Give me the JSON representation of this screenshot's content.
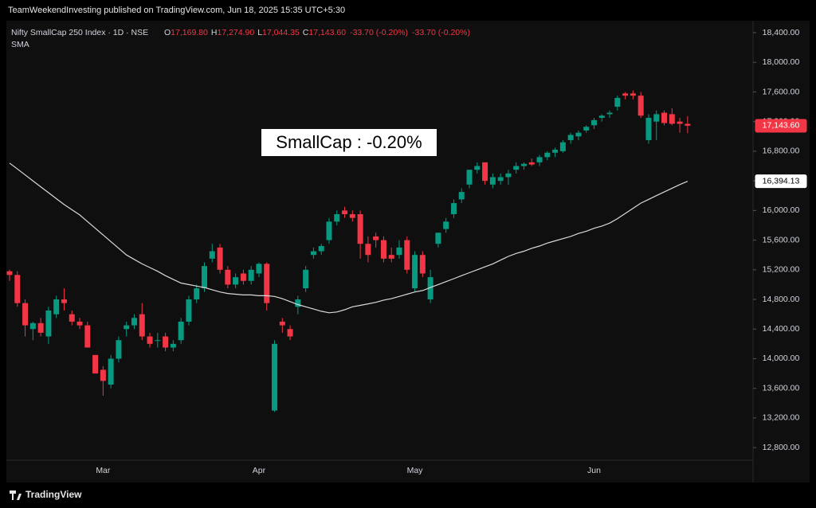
{
  "header": {
    "publisher": "TeamWeekendInvesting published on TradingView.com, Jun 18, 2025 15:35 UTC+5:30"
  },
  "footer": {
    "brand": "TradingView"
  },
  "chart_data": {
    "type": "candlestick",
    "symbol": "Nifty SmallCap 250 Index · 1D · NSE",
    "ohlc": [
      {
        "key": "O",
        "value": "17,169.80"
      },
      {
        "key": "H",
        "value": "17,274.90"
      },
      {
        "key": "L",
        "value": "17,044.35"
      },
      {
        "key": "C",
        "value": "17,143.60"
      }
    ],
    "change": [
      "-33.70 (-0.20%)",
      "-33.70 (-0.20%)"
    ],
    "annotation": "SmallCap : -0.20%",
    "up_color": "#089981",
    "down_color": "#f23645",
    "grid": false,
    "categories": [
      null,
      null,
      null,
      null,
      null,
      null,
      null,
      null,
      null,
      null,
      null,
      null,
      "Mar",
      null,
      null,
      null,
      null,
      null,
      null,
      null,
      null,
      null,
      null,
      null,
      null,
      null,
      null,
      null,
      null,
      null,
      null,
      null,
      "Apr",
      null,
      null,
      null,
      null,
      null,
      null,
      null,
      null,
      null,
      null,
      null,
      null,
      null,
      null,
      null,
      null,
      null,
      null,
      null,
      "May",
      null,
      null,
      null,
      null,
      null,
      null,
      null,
      null,
      null,
      null,
      null,
      null,
      null,
      null,
      null,
      null,
      null,
      null,
      null,
      null,
      null,
      null,
      "Jun",
      null,
      null,
      null,
      null,
      null,
      null,
      null,
      null,
      null,
      null,
      null,
      null
    ],
    "open": [
      15180,
      15130,
      14750,
      14400,
      14480,
      14300,
      14600,
      14800,
      14600,
      14500,
      14450,
      14050,
      13850,
      13650,
      14000,
      14400,
      14450,
      14600,
      14300,
      14250,
      14300,
      14150,
      14250,
      14500,
      14800,
      14950,
      15350,
      15500,
      15200,
      15000,
      15150,
      15050,
      15150,
      15280,
      13300,
      14500,
      14400,
      14700,
      14950,
      15400,
      15450,
      15600,
      15850,
      16000,
      15950,
      15950,
      15550,
      15650,
      15600,
      15400,
      15400,
      15600,
      14950,
      15400,
      14800,
      15550,
      15750,
      15950,
      16150,
      16350,
      16550,
      16650,
      16350,
      16400,
      16450,
      16550,
      16600,
      16650,
      16650,
      16720,
      16780,
      16800,
      16950,
      17000,
      17080,
      17150,
      17250,
      17300,
      17400,
      17580,
      17580,
      17550,
      16950,
      17200,
      17320,
      17300,
      17200,
      17169.8
    ],
    "high": [
      15200,
      15180,
      14800,
      14500,
      14550,
      14700,
      14850,
      14950,
      14650,
      14550,
      14500,
      14050,
      13900,
      14050,
      14300,
      14500,
      14600,
      14750,
      14350,
      14350,
      14350,
      14250,
      14550,
      14850,
      15000,
      15300,
      15550,
      15550,
      15250,
      15150,
      15200,
      15250,
      15300,
      15300,
      14250,
      14550,
      14450,
      14850,
      15250,
      15500,
      15550,
      15900,
      16000,
      16050,
      16000,
      16000,
      15650,
      15700,
      15650,
      15500,
      15600,
      15650,
      15450,
      15450,
      15200,
      15700,
      15900,
      16150,
      16300,
      16550,
      16650,
      16650,
      16500,
      16500,
      16550,
      16650,
      16650,
      16700,
      16750,
      16800,
      16850,
      16950,
      17050,
      17080,
      17150,
      17250,
      17300,
      17350,
      17550,
      17600,
      17620,
      17600,
      17300,
      17350,
      17350,
      17380,
      17250,
      17274.9
    ],
    "low": [
      15050,
      14700,
      14300,
      14250,
      14300,
      14200,
      14550,
      14650,
      14450,
      14400,
      14200,
      13800,
      13500,
      13600,
      13950,
      14300,
      14400,
      14250,
      14150,
      14150,
      14100,
      14100,
      14200,
      14450,
      14750,
      14900,
      15300,
      15150,
      14950,
      14950,
      15000,
      15000,
      15100,
      14650,
      13280,
      14350,
      14250,
      14600,
      14900,
      15350,
      15400,
      15550,
      15800,
      15900,
      15850,
      15350,
      15300,
      15500,
      15300,
      15300,
      15350,
      15150,
      14900,
      15100,
      14750,
      15500,
      15700,
      15900,
      16100,
      16300,
      16500,
      16350,
      16300,
      16350,
      16350,
      16500,
      16550,
      16600,
      16600,
      16680,
      16720,
      16780,
      16900,
      16950,
      17050,
      17100,
      17200,
      17250,
      17350,
      17500,
      17500,
      17250,
      16900,
      16950,
      17150,
      17150,
      17050,
      17044.35
    ],
    "close": [
      15130,
      14750,
      14450,
      14480,
      14350,
      14650,
      14800,
      14750,
      14500,
      14450,
      14150,
      13800,
      13700,
      14000,
      14250,
      14450,
      14550,
      14300,
      14200,
      14250,
      14150,
      14200,
      14500,
      14800,
      14950,
      15250,
      15450,
      15200,
      15000,
      15100,
      15050,
      15200,
      15280,
      14750,
      14200,
      14450,
      14300,
      14800,
      15200,
      15450,
      15520,
      15850,
      15950,
      15950,
      15900,
      15550,
      15400,
      15600,
      15350,
      15350,
      15500,
      15200,
      15400,
      15150,
      15100,
      15700,
      15850,
      16100,
      16250,
      16550,
      16600,
      16400,
      16450,
      16450,
      16500,
      16600,
      16630,
      16620,
      16720,
      16780,
      16820,
      16920,
      17020,
      17050,
      17130,
      17220,
      17280,
      17320,
      17520,
      17550,
      17550,
      17280,
      17250,
      17300,
      17180,
      17170,
      17169.8,
      17143.6
    ],
    "sma": {
      "name": "SMA",
      "color": "#d9d9d9",
      "values": [
        16640,
        16560,
        16480,
        16400,
        16320,
        16240,
        16160,
        16080,
        16010,
        15940,
        15850,
        15760,
        15670,
        15580,
        15490,
        15400,
        15340,
        15280,
        15230,
        15180,
        15120,
        15070,
        15020,
        15000,
        14980,
        14960,
        14930,
        14900,
        14880,
        14870,
        14860,
        14860,
        14850,
        14850,
        14840,
        14810,
        14770,
        14730,
        14700,
        14670,
        14640,
        14620,
        14630,
        14660,
        14700,
        14720,
        14740,
        14760,
        14790,
        14810,
        14840,
        14870,
        14900,
        14920,
        14960,
        15000,
        15040,
        15080,
        15120,
        15160,
        15200,
        15240,
        15280,
        15330,
        15380,
        15420,
        15450,
        15490,
        15520,
        15560,
        15590,
        15620,
        15650,
        15690,
        15720,
        15760,
        15790,
        15830,
        15890,
        15960,
        16030,
        16100,
        16150,
        16200,
        16250,
        16300,
        16350,
        16394.13
      ]
    },
    "last_price": {
      "value": 17143.6,
      "label": "17,143.60"
    },
    "sma_last": {
      "value": 16394.13,
      "label": "16,394.13"
    },
    "ylim": [
      12350,
      18540
    ],
    "yticks": [
      {
        "value": 12800,
        "label": "12,800.00"
      },
      {
        "value": 13200,
        "label": "13,200.00"
      },
      {
        "value": 13600,
        "label": "13,600.00"
      },
      {
        "value": 14000,
        "label": "14,000.00"
      },
      {
        "value": 14400,
        "label": "14,400.00"
      },
      {
        "value": 14800,
        "label": "14,800.00"
      },
      {
        "value": 15200,
        "label": "15,200.00"
      },
      {
        "value": 15600,
        "label": "15,600.00"
      },
      {
        "value": 16000,
        "label": "16,000.00"
      },
      {
        "value": 16400,
        "label": "16,400.00"
      },
      {
        "value": 16800,
        "label": "16,800.00"
      },
      {
        "value": 17200,
        "label": "17,200.00"
      },
      {
        "value": 17600,
        "label": "17,600.00"
      },
      {
        "value": 18000,
        "label": "18,000.00"
      },
      {
        "value": 18400,
        "label": "18,400.00"
      }
    ]
  }
}
